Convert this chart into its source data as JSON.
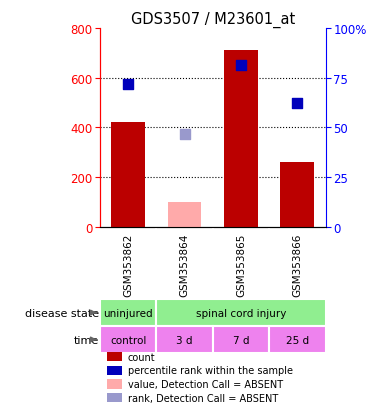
{
  "title": "GDS3507 / M23601_at",
  "samples": [
    "GSM353862",
    "GSM353864",
    "GSM353865",
    "GSM353866"
  ],
  "count_values": [
    420,
    0,
    710,
    260
  ],
  "count_present": [
    true,
    false,
    true,
    true
  ],
  "absent_value": [
    0,
    100,
    0,
    0
  ],
  "percentile_values": [
    575,
    0,
    650,
    500
  ],
  "percentile_present": [
    true,
    false,
    true,
    true
  ],
  "absent_rank": [
    0,
    375,
    0,
    0
  ],
  "ylim_left": [
    0,
    800
  ],
  "ylim_right": [
    0,
    100
  ],
  "yticks_left": [
    0,
    200,
    400,
    600,
    800
  ],
  "yticks_right": [
    0,
    25,
    50,
    75,
    100
  ],
  "time_labels": [
    "control",
    "3 d",
    "7 d",
    "25 d"
  ],
  "time_color": "#ee82ee",
  "disease_color": "#90ee90",
  "bar_color_present": "#bb0000",
  "bar_color_absent": "#ffaaaa",
  "dot_color_present": "#0000bb",
  "dot_color_absent": "#9999cc",
  "sample_bg_color": "#c8c8c8",
  "legend_items": [
    {
      "label": "count",
      "color": "#bb0000"
    },
    {
      "label": "percentile rank within the sample",
      "color": "#0000bb"
    },
    {
      "label": "value, Detection Call = ABSENT",
      "color": "#ffaaaa"
    },
    {
      "label": "rank, Detection Call = ABSENT",
      "color": "#9999cc"
    }
  ]
}
